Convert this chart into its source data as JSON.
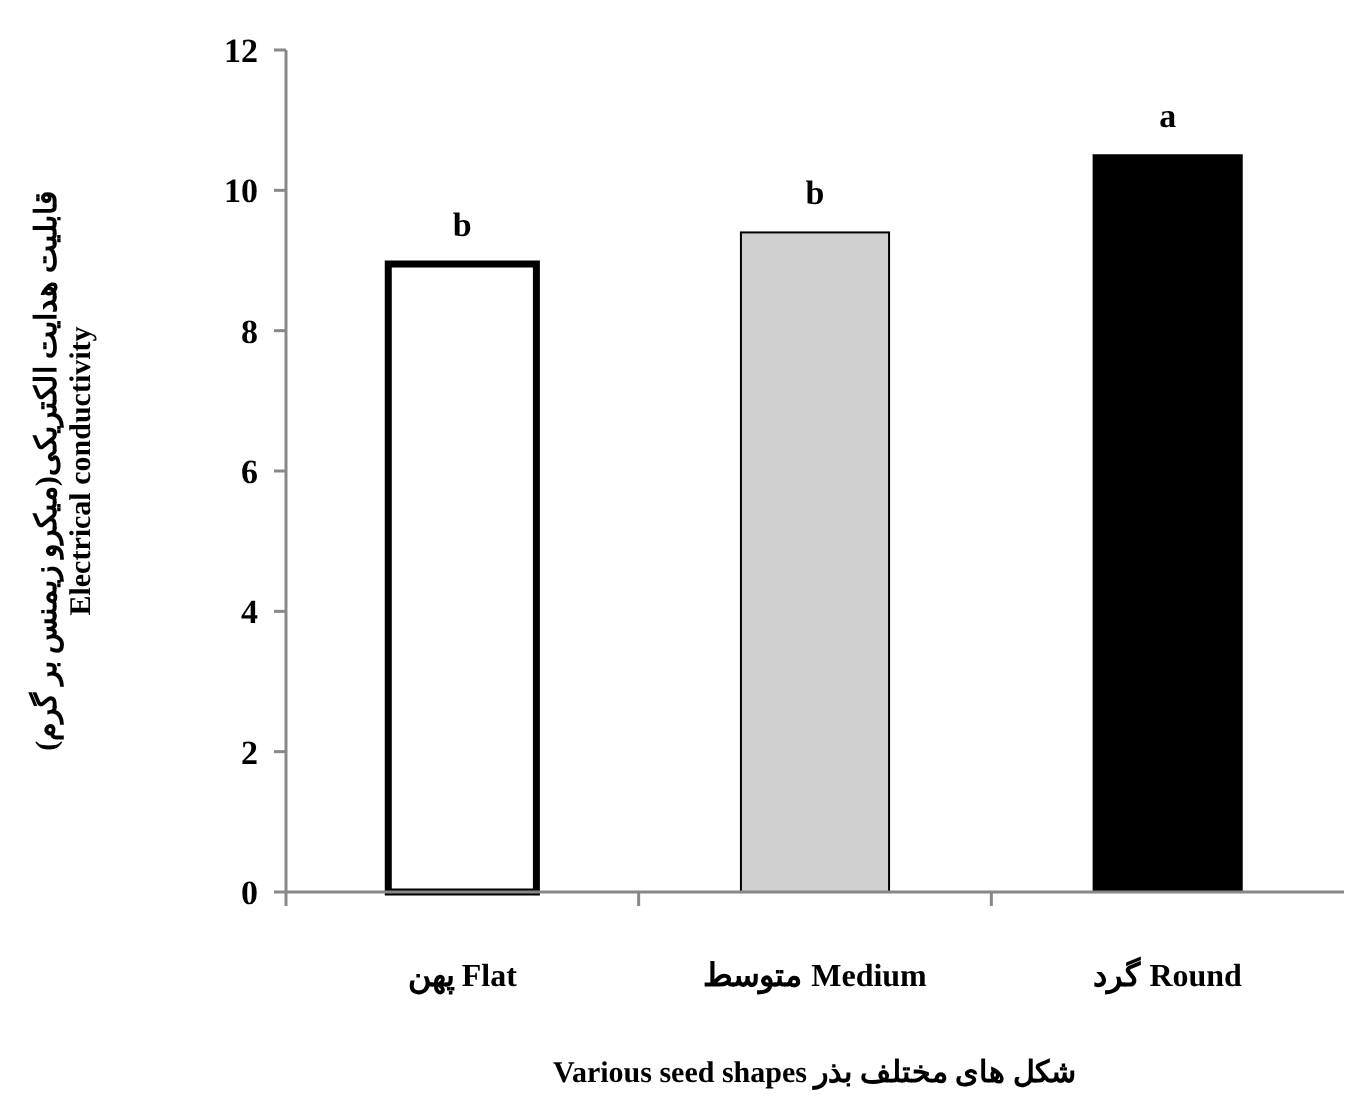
{
  "chart_data": {
    "type": "bar",
    "categories": [
      "پهن  Flat",
      "متوسط Medium",
      "گرد Round"
    ],
    "values": [
      8.95,
      9.4,
      10.5
    ],
    "colors": [
      "#ffffff",
      "#d0d0d0",
      "#000000"
    ],
    "ylim": [
      0,
      12
    ],
    "yticks": [
      0,
      2,
      4,
      6,
      8,
      10,
      12
    ],
    "xlabel": "Various seed shapes  شکل های مختلف بذر",
    "ylabel": "قابلیت هدایت الکتریکی(میکرو زیمنس بر گرم)\nElectrical conductivity",
    "grid": false,
    "annotations": [
      {
        "text": "b",
        "x": "پهن  Flat",
        "y": 8.95
      },
      {
        "text": "b",
        "x": "متوسط Medium",
        "y": 9.4
      },
      {
        "text": "a",
        "x": "گرد Round",
        "y": 10.5
      }
    ]
  }
}
